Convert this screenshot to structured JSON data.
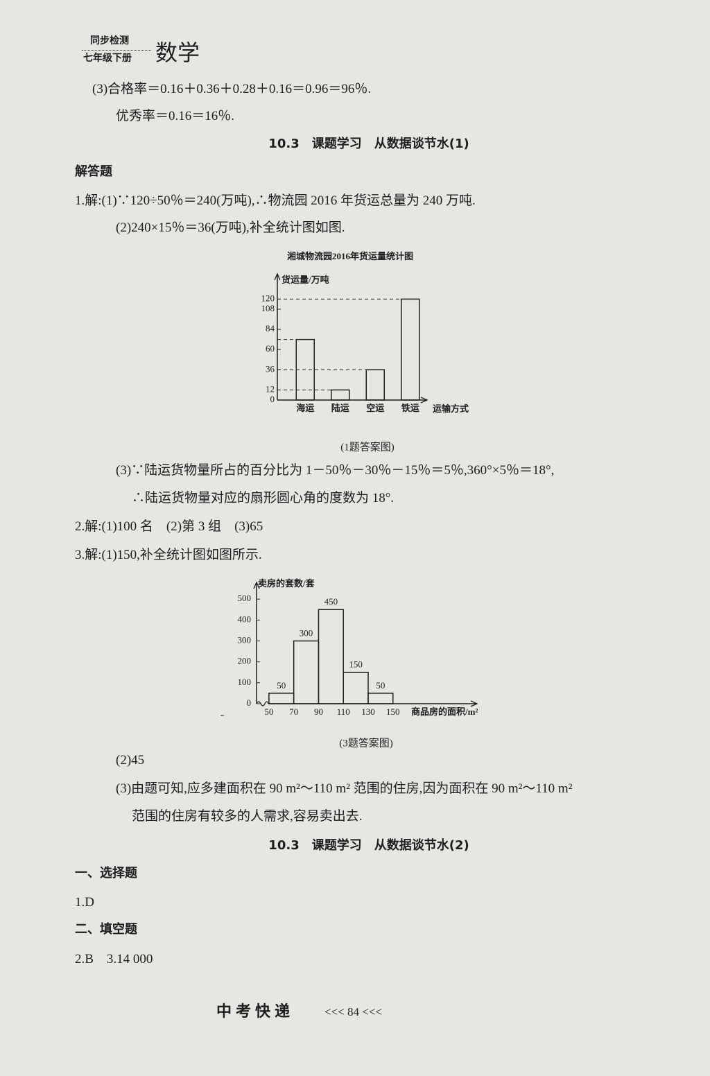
{
  "header": {
    "series": "同步检测",
    "grade": "七年级下册",
    "subject": "数学"
  },
  "lines": [
    "(3)合格率＝0.16＋0.36＋0.28＋0.16＝0.96＝96％.",
    "优秀率＝0.16＝16％.",
    "10.3　课题学习　从数据谈节水(1)",
    "解答题",
    "1.解:(1)∵120÷50％＝240(万吨),∴物流园 2016 年货运总量为 240 万吨.",
    "(2)240×15％＝36(万吨),补全统计图如图.",
    "(3)∵陆运货物量所占的百分比为 1－50％－30％－15％＝5％,360°×5％＝18°,",
    "∴陆运货物量对应的扇形圆心角的度数为 18°.",
    "2.解:(1)100 名　(2)第 3 组　(3)65",
    "3.解:(1)150,补全统计图如图所示.",
    "(2)45",
    "(3)由题可知,应多建面积在 90 m²～110 m² 范围的住房,因为面积在 90 m²～110 m²",
    "范围的住房有较多的人需求,容易卖出去.",
    "10.3　课题学习　从数据谈节水(2)",
    "一、选择题",
    "1.D",
    "二、填空题",
    "2.B　3.14 000"
  ],
  "chart_data": [
    {
      "type": "bar",
      "title": "湘城物流园2016年货运量统计图",
      "y_label": "货运量/万吨",
      "x_label": "运输方式",
      "categories": [
        "海运",
        "陆运",
        "空运",
        "铁运"
      ],
      "values": [
        72,
        12,
        36,
        120
      ],
      "ylim": [
        0,
        150
      ],
      "yticks": [
        0,
        12,
        36,
        60,
        84,
        108,
        120
      ],
      "caption": "(1题答案图)"
    },
    {
      "type": "histogram",
      "y_label": "卖房的套数/套",
      "x_label": "商品房的面积/m²",
      "bins": [
        50,
        70,
        90,
        110,
        130,
        150
      ],
      "values": [
        50,
        300,
        450,
        150,
        50
      ],
      "ylim": [
        0,
        580
      ],
      "yticks": [
        0,
        100,
        200,
        300,
        400,
        500
      ],
      "xlim": [
        40,
        220
      ],
      "xticks": [
        50,
        70,
        90,
        110,
        130,
        150
      ],
      "caption": "(3题答案图)"
    }
  ],
  "footer": {
    "brand": "中考快递",
    "page": "<<< 84 <<<"
  }
}
